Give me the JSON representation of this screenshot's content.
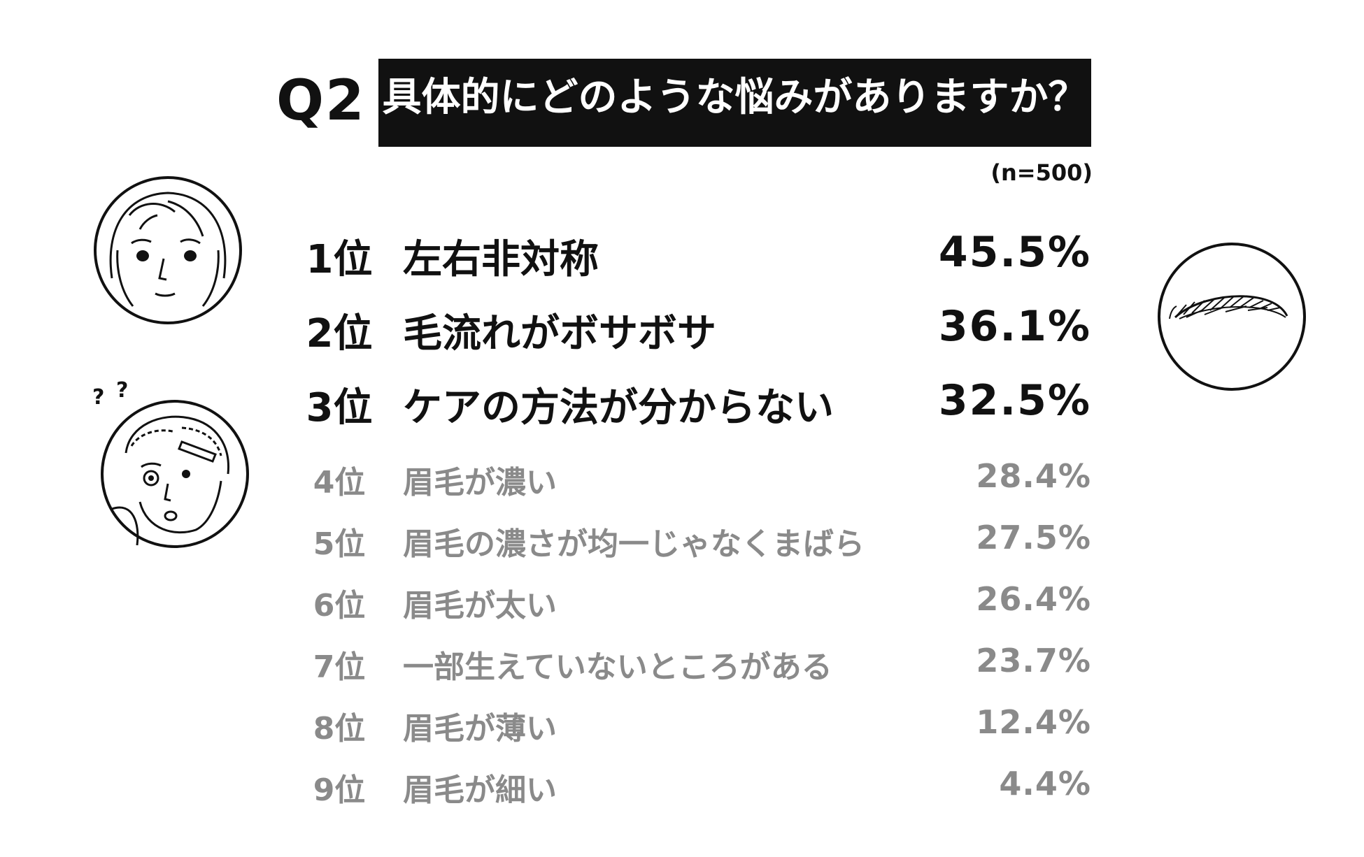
{
  "header": {
    "q_label": "Q2",
    "title": "具体的にどのような悩みがありますか？",
    "sample": "(n=500)"
  },
  "colors": {
    "top": "#111111",
    "rest": "#8a8a8a",
    "title_bg": "#111111",
    "title_fg": "#ffffff"
  },
  "icons": [
    "face-front-icon",
    "confused-face-icon",
    "question-marks-icon",
    "eyebrow-icon"
  ],
  "chart_data": {
    "type": "table",
    "title": "具体的にどのような悩みがありますか？",
    "n": "(n=500)",
    "columns": [
      "rank",
      "label",
      "value"
    ],
    "rows": [
      {
        "rank": "1位",
        "label": "左右非対称",
        "value": "45.5%",
        "percent": 45.5
      },
      {
        "rank": "2位",
        "label": "毛流れがボサボサ",
        "value": "36.1%",
        "percent": 36.1
      },
      {
        "rank": "3位",
        "label": "ケアの方法が分からない",
        "value": "32.5%",
        "percent": 32.5
      },
      {
        "rank": "4位",
        "label": "眉毛が濃い",
        "value": "28.4%",
        "percent": 28.4
      },
      {
        "rank": "5位",
        "label": "眉毛の濃さが均一じゃなくまばら",
        "value": "27.5%",
        "percent": 27.5
      },
      {
        "rank": "6位",
        "label": "眉毛が太い",
        "value": "26.4%",
        "percent": 26.4
      },
      {
        "rank": "7位",
        "label": "一部生えていないところがある",
        "value": "23.7%",
        "percent": 23.7
      },
      {
        "rank": "8位",
        "label": "眉毛が薄い",
        "value": "12.4%",
        "percent": 12.4
      },
      {
        "rank": "9位",
        "label": "眉毛が細い",
        "value": "4.4%",
        "percent": 4.4
      }
    ]
  }
}
